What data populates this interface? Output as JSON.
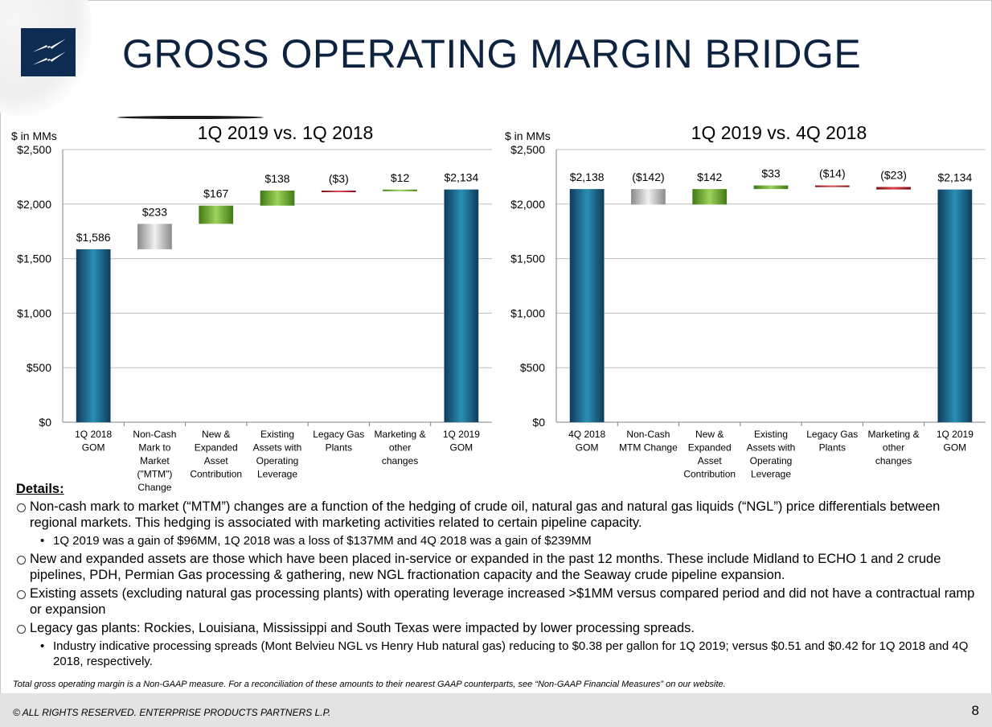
{
  "title": "GROSS OPERATING MARGIN BRIDGE",
  "chart_data": [
    {
      "type": "bar",
      "subtype": "waterfall",
      "title": "1Q 2019 vs. 1Q 2018",
      "ylabel": "$ in MMs",
      "ylim": [
        0,
        2500
      ],
      "yticks": [
        "$0",
        "$500",
        "$1,000",
        "$1,500",
        "$2,000",
        "$2,500"
      ],
      "grid": true,
      "legend": "none",
      "categories": [
        "1Q 2018 GOM",
        "Non-Cash Mark to Market (\"MTM\") Change",
        "New & Expanded Asset Contribution",
        "Existing Assets with Operating Leverage",
        "Legacy Gas Plants",
        "Marketing & other changes",
        "1Q 2019 GOM"
      ],
      "values": [
        1586,
        233,
        167,
        138,
        -3,
        12,
        2134
      ],
      "labels": [
        "$1,586",
        "$233",
        "$167",
        "$138",
        "($3)",
        "$12",
        "$2,134"
      ],
      "bar_kinds": [
        "total",
        "mtm",
        "increase",
        "increase",
        "decrease",
        "increase",
        "total"
      ],
      "cat_lines": [
        [
          "1Q 2018",
          "GOM"
        ],
        [
          "Non-Cash",
          "Mark to",
          "Market",
          "(\"MTM\")",
          "Change"
        ],
        [
          "New &",
          "Expanded",
          "Asset",
          "Contribution"
        ],
        [
          "Existing",
          "Assets with",
          "Operating",
          "Leverage"
        ],
        [
          "Legacy Gas",
          "Plants"
        ],
        [
          "Marketing &",
          "other",
          "changes"
        ],
        [
          "1Q 2019",
          "GOM"
        ]
      ]
    },
    {
      "type": "bar",
      "subtype": "waterfall",
      "title": "1Q 2019 vs. 4Q 2018",
      "ylabel": "$ in MMs",
      "ylim": [
        0,
        2500
      ],
      "yticks": [
        "$0",
        "$500",
        "$1,000",
        "$1,500",
        "$2,000",
        "$2,500"
      ],
      "grid": true,
      "legend": "none",
      "categories": [
        "4Q 2018 GOM",
        "Non-Cash MTM Change",
        "New & Expanded Asset Contribution",
        "Existing Assets with Operating Leverage",
        "Legacy Gas Plants",
        "Marketing & other changes",
        "1Q 2019 GOM"
      ],
      "values": [
        2138,
        -142,
        142,
        33,
        -14,
        -23,
        2134
      ],
      "labels": [
        "$2,138",
        "($142)",
        "$142",
        "$33",
        "($14)",
        "($23)",
        "$2,134"
      ],
      "bar_kinds": [
        "total",
        "mtm",
        "increase",
        "increase",
        "decrease",
        "decrease",
        "total"
      ],
      "cat_lines": [
        [
          "4Q 2018",
          "GOM"
        ],
        [
          "Non-Cash",
          "MTM Change"
        ],
        [
          "New &",
          "Expanded",
          "Asset",
          "Contribution"
        ],
        [
          "Existing",
          "Assets with",
          "Operating",
          "Leverage"
        ],
        [
          "Legacy Gas",
          "Plants"
        ],
        [
          "Marketing &",
          "other",
          "changes"
        ],
        [
          "1Q 2019",
          "GOM"
        ]
      ]
    }
  ],
  "colors": {
    "total": "#1c6f93",
    "increase": "#6ba72e",
    "decrease": "#a8141c",
    "mtm": "#b7b7b7"
  },
  "details": {
    "heading": "Details:",
    "bullets": [
      {
        "level": 1,
        "text": "Non-cash mark to market (“MTM”) changes are a function of the hedging of crude oil, natural gas and natural gas liquids (“NGL”) price differentials between regional markets. This hedging is associated with marketing activities related to certain pipeline capacity."
      },
      {
        "level": 2,
        "text": "1Q 2019 was a gain of $96MM, 1Q 2018 was a loss of $137MM and 4Q 2018 was a gain of $239MM"
      },
      {
        "level": 1,
        "text": "New and expanded assets are those which have been placed in-service or expanded in the past 12 months.  These include Midland to ECHO 1 and 2 crude pipelines, PDH, Permian Gas processing & gathering, new NGL fractionation capacity and the Seaway crude pipeline expansion."
      },
      {
        "level": 1,
        "text": "Existing assets (excluding natural gas processing plants) with operating leverage increased >$1MM versus compared period and did not have a contractual ramp or expansion"
      },
      {
        "level": 1,
        "text": "Legacy gas plants:  Rockies, Louisiana, Mississippi and South Texas were impacted by lower processing spreads."
      },
      {
        "level": 2,
        "text": "Industry indicative processing spreads (Mont Belvieu NGL vs Henry Hub natural gas) reducing to $0.38 per gallon for 1Q 2019; versus $0.51 and $0.42 for 1Q 2018 and 4Q 2018, respectively."
      }
    ]
  },
  "footnote": "Total gross operating margin is a Non-GAAP measure. For a reconciliation of these amounts to their nearest GAAP counterparts, see “Non-GAAP Financial Measures” on our website.",
  "footer": {
    "copyright": "© ALL RIGHTS RESERVED. ENTERPRISE PRODUCTS PARTNERS L.P.",
    "page_number": "8"
  }
}
